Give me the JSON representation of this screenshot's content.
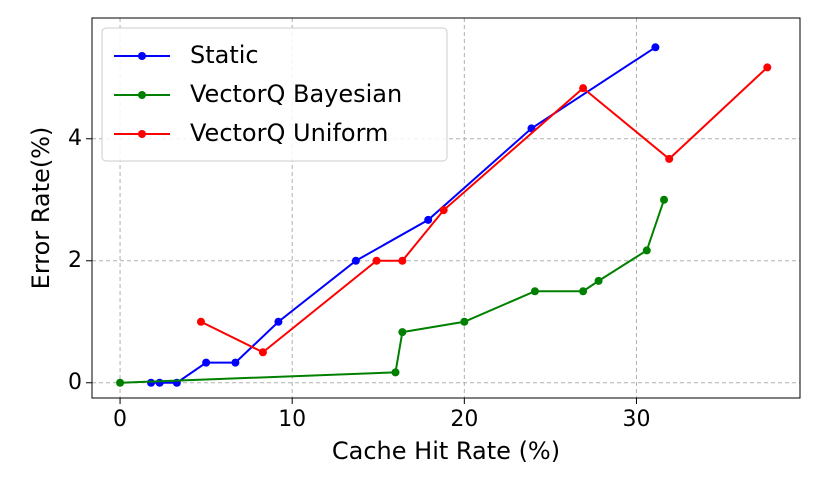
{
  "chart_data": {
    "type": "line",
    "xlabel": "Cache Hit Rate (%)",
    "ylabel": "Error Rate(%)",
    "xlim": [
      -1.63,
      39.5
    ],
    "ylim": [
      -0.25,
      5.98
    ],
    "xticks": [
      0,
      10,
      20,
      30
    ],
    "yticks": [
      0,
      2,
      4
    ],
    "grid": true,
    "legend": "upper left",
    "series": [
      {
        "name": "Static",
        "color": "#0000ff",
        "x": [
          1.8,
          2.3,
          3.3,
          5.0,
          6.7,
          9.2,
          13.7,
          17.9,
          23.9,
          31.1
        ],
        "values": [
          0,
          0,
          0,
          0.33,
          0.33,
          1.0,
          2.0,
          2.67,
          4.17,
          5.5
        ]
      },
      {
        "name": "VectorQ Bayesian",
        "color": "#008000",
        "x": [
          0,
          16.0,
          16.4,
          20.0,
          24.1,
          26.9,
          27.8,
          30.6,
          31.6
        ],
        "values": [
          0,
          0.17,
          0.83,
          1.0,
          1.5,
          1.5,
          1.67,
          2.17,
          3.0
        ]
      },
      {
        "name": "VectorQ Uniform",
        "color": "#ff0000",
        "x": [
          4.7,
          8.3,
          14.9,
          16.4,
          18.8,
          26.9,
          31.9,
          37.6
        ],
        "values": [
          1.0,
          0.5,
          2.0,
          2.0,
          2.83,
          4.83,
          3.67,
          5.17
        ]
      }
    ]
  }
}
